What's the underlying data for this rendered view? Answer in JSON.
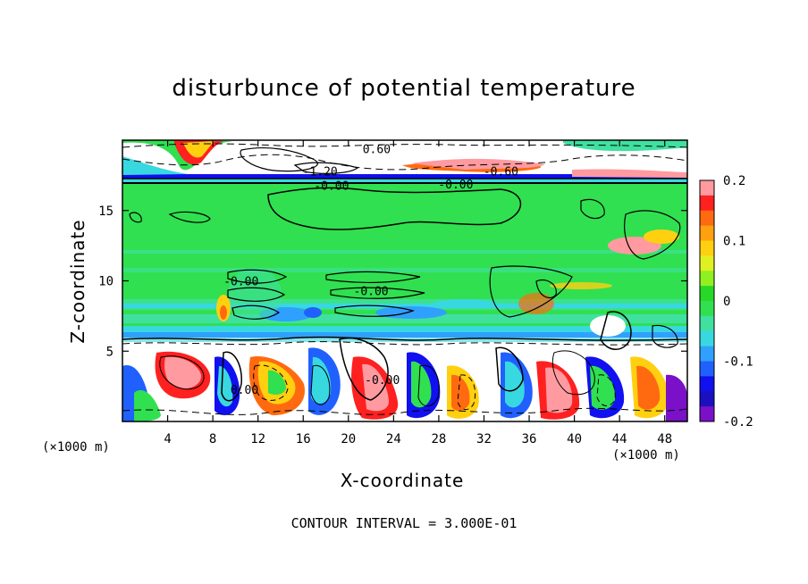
{
  "chart_data": {
    "type": "heatmap",
    "title": "disturbunce of potential temperature",
    "xlabel": "X-coordinate",
    "ylabel": "Z-coordinate",
    "x_unit": "(×1000 m)",
    "y_unit": "(×1000 m)",
    "xlim": [
      0,
      50
    ],
    "ylim": [
      0,
      20
    ],
    "xticks": [
      4,
      8,
      12,
      16,
      20,
      24,
      28,
      32,
      36,
      40,
      44,
      48
    ],
    "yticks": [
      5,
      10,
      15
    ],
    "colorbar": {
      "ticks": [
        0.2,
        0.1,
        0,
        -0.1,
        -0.2
      ],
      "range": [
        -0.2,
        0.2
      ],
      "colors": [
        "#ff9aa0",
        "#ff2020",
        "#ff6a10",
        "#ffa010",
        "#ffd010",
        "#e0f020",
        "#90f020",
        "#28d828",
        "#30e050",
        "#40e0a0",
        "#38d8e0",
        "#30a0ff",
        "#2060ff",
        "#1010f0",
        "#1a10c0",
        "#7a10c8"
      ]
    },
    "contour_labels": [
      {
        "text": "0.60",
        "x": 22.5,
        "y": 19.4
      },
      {
        "text": "-1.20",
        "x": 17.5,
        "y": 17.8
      },
      {
        "text": "-0.60",
        "x": 33.5,
        "y": 17.8
      },
      {
        "text": "-0.00",
        "x": 18.5,
        "y": 16.8
      },
      {
        "text": "-0.00",
        "x": 29.5,
        "y": 16.9
      },
      {
        "text": "-0.00",
        "x": 10.5,
        "y": 10.0
      },
      {
        "text": "-0.00",
        "x": 22.0,
        "y": 9.3
      },
      {
        "text": "0.00",
        "x": 10.8,
        "y": 2.3
      },
      {
        "text": "-0.00",
        "x": 23.0,
        "y": 3.0
      }
    ],
    "footer": "CONTOUR INTERVAL = 3.000E-01"
  }
}
